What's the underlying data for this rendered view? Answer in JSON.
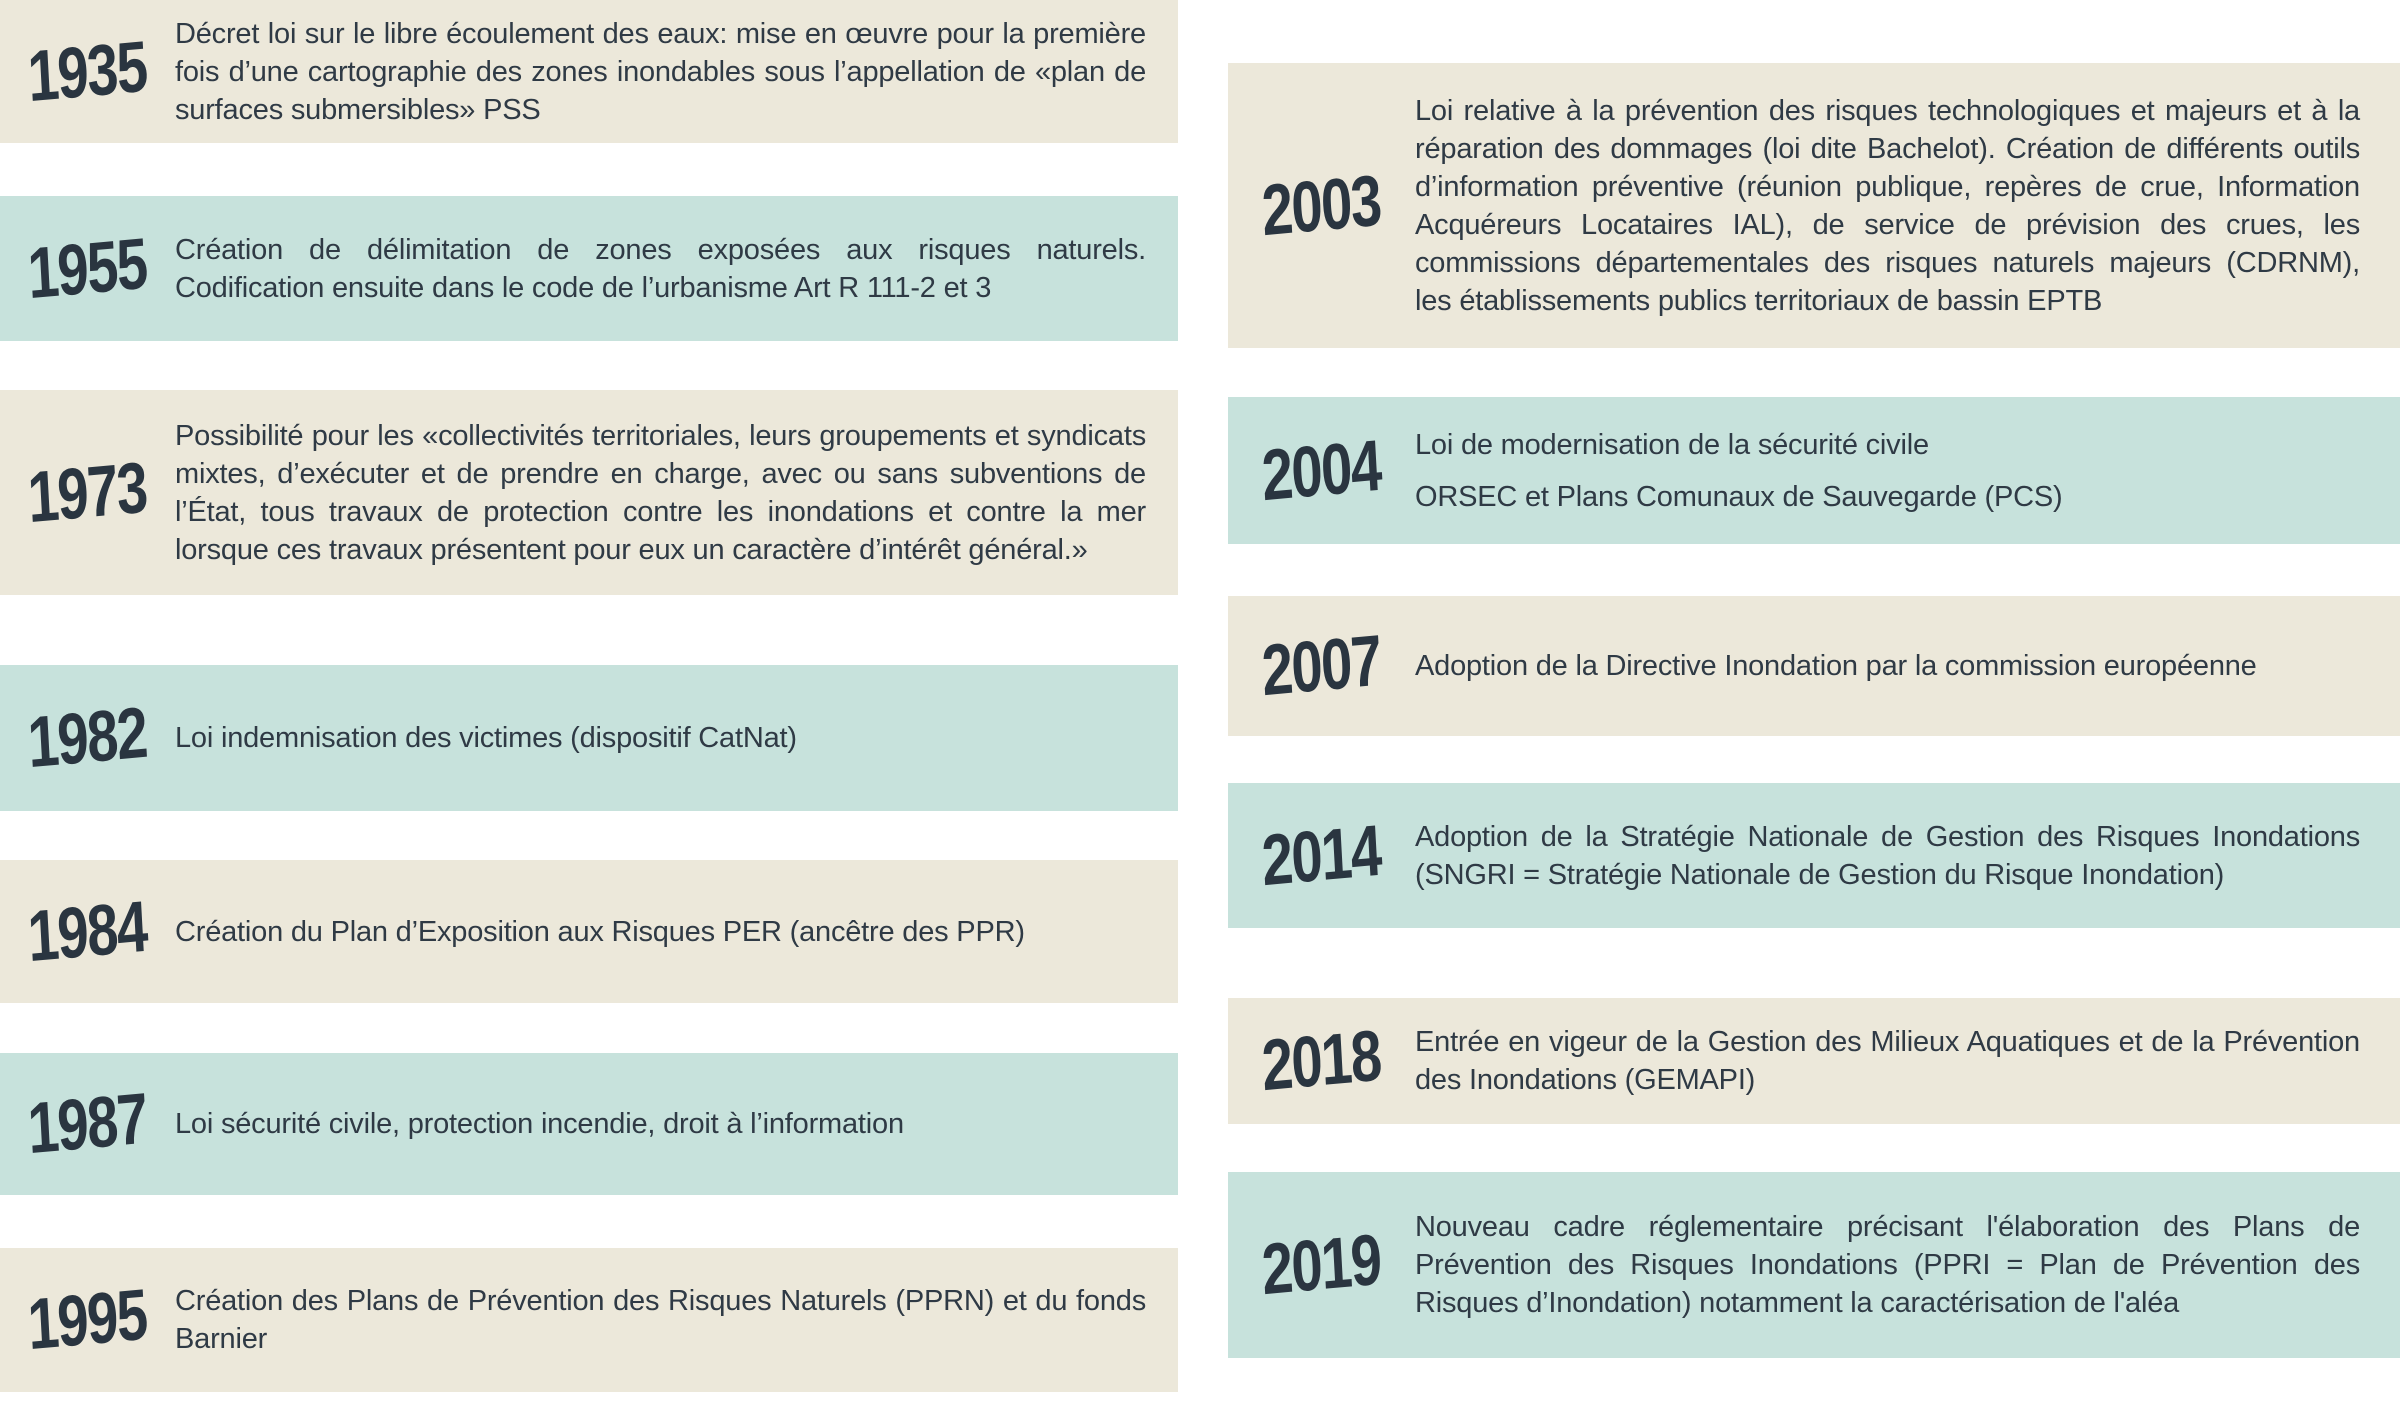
{
  "colors": {
    "background": "#FFFFFF",
    "beige_block": "#ECE8DA",
    "teal_block": "#C7E2DC",
    "text": "#2F3A45",
    "year_text": "#2A3540"
  },
  "timeline": {
    "left_column": [
      {
        "year": "1935",
        "bg": "beige",
        "text": "Décret loi sur le libre écoulement des eaux: mise en œuvre pour la première fois d’une cartographie des zones inondables sous l’appellation de «plan de surfaces submersibles» PSS"
      },
      {
        "year": "1955",
        "bg": "teal",
        "text": "Création de délimitation de zones exposées aux risques naturels. Codification ensuite dans le code de l’urbanisme Art R 111-2 et 3"
      },
      {
        "year": "1973",
        "bg": "beige",
        "text": "Possibilité pour les «collectivités territoriales, leurs groupements et syndicats mixtes, d’exécuter et de prendre en charge, avec ou sans subventions de l’État, tous travaux de protection contre les inondations et contre la mer lorsque ces travaux présentent pour eux un caractère d’intérêt général.»"
      },
      {
        "year": "1982",
        "bg": "teal",
        "text": "Loi indemnisation des victimes (dispositif CatNat)"
      },
      {
        "year": "1984",
        "bg": "beige",
        "text": "Création du Plan d’Exposition aux Risques PER (ancêtre des PPR)"
      },
      {
        "year": "1987",
        "bg": "teal",
        "text": "Loi sécurité civile, protection incendie, droit à l’information"
      },
      {
        "year": "1995",
        "bg": "beige",
        "text": "Création des Plans de Prévention des Risques Naturels (PPRN) et du fonds Barnier"
      }
    ],
    "right_column": [
      {
        "year": "2003",
        "bg": "beige",
        "text": "Loi relative à la prévention des risques technologiques et majeurs et à la réparation des dommages (loi dite Bachelot). Création de différents outils d’information préventive (réunion publique, repères de crue, Information Acquéreurs Locataires IAL), de service de prévision des crues, les commissions départementales des risques naturels majeurs (CDRNM), les établissements publics territoriaux de bassin EPTB"
      },
      {
        "year": "2004",
        "bg": "teal",
        "text": "Loi de modernisation de la sécurité civile",
        "text2": "ORSEC et Plans Comunaux de Sauvegarde (PCS)"
      },
      {
        "year": "2007",
        "bg": "beige",
        "text": "Adoption de la Directive Inondation par la commission européenne"
      },
      {
        "year": "2014",
        "bg": "teal",
        "text": "Adoption de la Stratégie Nationale de Gestion des Risques Inondations (SNGRI = Stratégie Nationale de Gestion du Risque Inondation)"
      },
      {
        "year": "2018",
        "bg": "beige",
        "text": "Entrée en vigeur de la Gestion des Milieux Aquatiques et de la Prévention des Inondations (GEMAPI)"
      },
      {
        "year": "2019",
        "bg": "teal",
        "text": "Nouveau cadre réglementaire précisant l'élaboration des Plans de Prévention des Risques Inondations (PPRI = Plan de Prévention des Risques d’Inondation) notamment la caractérisation de l'aléa"
      }
    ]
  }
}
